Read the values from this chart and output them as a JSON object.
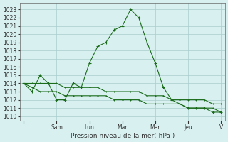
{
  "title": "",
  "xlabel": "Pression niveau de la mer( hPa )",
  "ylabel": "",
  "bg_color": "#d8f0f0",
  "grid_color": "#aacccc",
  "line_color": "#1a6b1a",
  "ylim": [
    1010,
    1023.5
  ],
  "yticks": [
    1010,
    1011,
    1012,
    1013,
    1014,
    1015,
    1016,
    1017,
    1018,
    1019,
    1020,
    1021,
    1022,
    1023
  ],
  "day_labels": [
    "",
    "Sam",
    "Lun",
    "Mar",
    "Mer",
    "Jeu",
    "V"
  ],
  "series": [
    [
      1014.0,
      1013.0,
      1015.0,
      1014.0,
      1012.0,
      1012.0,
      1014.0,
      1013.5,
      1016.5,
      1018.5,
      1019.0,
      1020.5,
      1021.0,
      1023.0,
      1022.0,
      1019.0,
      1016.5,
      1013.5,
      1012.0,
      1011.5,
      1011.0,
      1011.0,
      1011.0,
      1010.5,
      1010.5
    ],
    [
      1014.0,
      1013.5,
      1013.0,
      1013.0,
      1013.0,
      1012.5,
      1012.5,
      1012.5,
      1012.5,
      1012.5,
      1012.5,
      1012.0,
      1012.0,
      1012.0,
      1012.0,
      1011.5,
      1011.5,
      1011.5,
      1011.5,
      1011.5,
      1011.0,
      1011.0,
      1011.0,
      1011.0,
      1010.5
    ],
    [
      1014.0,
      1014.0,
      1014.0,
      1014.0,
      1014.0,
      1013.5,
      1013.5,
      1013.5,
      1013.5,
      1013.5,
      1013.0,
      1013.0,
      1013.0,
      1013.0,
      1013.0,
      1012.5,
      1012.5,
      1012.5,
      1012.0,
      1012.0,
      1012.0,
      1012.0,
      1012.0,
      1011.5,
      1011.5
    ]
  ],
  "n_points": 25,
  "day_positions": [
    0,
    4,
    8,
    12,
    16,
    20,
    24
  ]
}
